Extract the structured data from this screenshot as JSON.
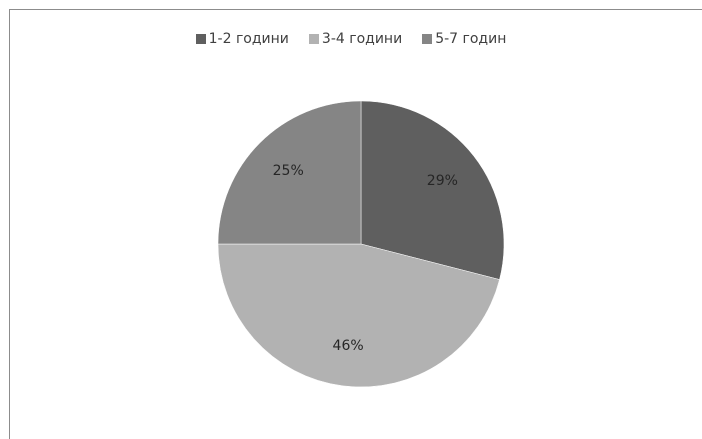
{
  "chart_data": {
    "type": "pie",
    "title": "",
    "categories": [
      "1-2 години",
      "3-4 години",
      "5-7 годин"
    ],
    "values": [
      29,
      46,
      25
    ],
    "labels": [
      "29%",
      "46%",
      "25%"
    ],
    "colors": [
      "#5f5f5f",
      "#b2b2b2",
      "#858585"
    ],
    "legend": "top"
  }
}
